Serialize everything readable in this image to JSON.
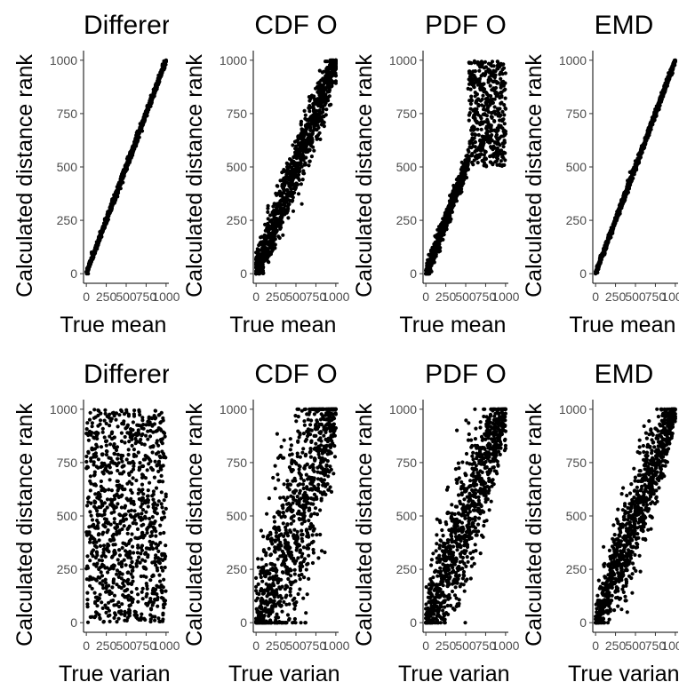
{
  "chart_data": [
    {
      "type": "scatter",
      "title": "Differer",
      "xlabel": "True mean ra",
      "ylabel": "Calculated distance rank",
      "x_ticks": [
        "0",
        "250",
        "500",
        "750",
        "1000"
      ],
      "y_ticks": [
        "0",
        "250",
        "500",
        "750",
        "1000"
      ],
      "xlim": [
        -35,
        1035
      ],
      "ylim": [
        -45,
        1045
      ],
      "pattern": {
        "kind": "band",
        "noise": [
          8,
          8
        ],
        "count": 1000
      }
    },
    {
      "type": "scatter",
      "title": "CDF O",
      "xlabel": "True mean ra",
      "ylabel": "Calculated distance rank",
      "x_ticks": [
        "0",
        "250",
        "500",
        "750",
        "1000"
      ],
      "y_ticks": [
        "0",
        "250",
        "500",
        "750",
        "1000"
      ],
      "xlim": [
        -35,
        1035
      ],
      "ylim": [
        -45,
        1045
      ],
      "pattern": {
        "kind": "band",
        "noise": [
          50,
          50
        ],
        "count": 1000
      }
    },
    {
      "type": "scatter",
      "title": "PDF O",
      "xlabel": "True mean ra",
      "ylabel": "Calculated distance rank",
      "x_ticks": [
        "0",
        "250",
        "500",
        "750",
        "1000"
      ],
      "y_ticks": [
        "0",
        "250",
        "500",
        "750",
        "1000"
      ],
      "xlim": [
        -35,
        1035
      ],
      "ylim": [
        -45,
        1045
      ],
      "pattern": {
        "kind": "split",
        "split_x": 540,
        "low_noise": 25,
        "upper_range": [
          500,
          1000
        ],
        "count": 1000
      }
    },
    {
      "type": "scatter",
      "title": "EMD",
      "xlabel": "True mean ra",
      "ylabel": "Calculated distance rank",
      "x_ticks": [
        "0",
        "250",
        "500",
        "750",
        "1000"
      ],
      "y_ticks": [
        "0",
        "250",
        "500",
        "750",
        "1000"
      ],
      "xlim": [
        -35,
        1035
      ],
      "ylim": [
        -45,
        1045
      ],
      "pattern": {
        "kind": "band",
        "noise": [
          8,
          8
        ],
        "count": 1000
      }
    },
    {
      "type": "scatter",
      "title": "Differer",
      "xlabel": "True variance",
      "ylabel": "Calculated distance rank",
      "x_ticks": [
        "0",
        "250",
        "500",
        "750",
        "1000"
      ],
      "y_ticks": [
        "0",
        "250",
        "500",
        "750",
        "1000"
      ],
      "xlim": [
        -35,
        1035
      ],
      "ylim": [
        -45,
        1045
      ],
      "pattern": {
        "kind": "uniform",
        "count": 1000
      }
    },
    {
      "type": "scatter",
      "title": "CDF O",
      "xlabel": "True variance",
      "ylabel": "Calculated distance rank",
      "x_ticks": [
        "0",
        "250",
        "500",
        "750",
        "1000"
      ],
      "y_ticks": [
        "0",
        "250",
        "500",
        "750",
        "1000"
      ],
      "xlim": [
        -35,
        1035
      ],
      "ylim": [
        -45,
        1045
      ],
      "pattern": {
        "kind": "band",
        "noise": [
          20,
          260
        ],
        "count": 1000
      }
    },
    {
      "type": "scatter",
      "title": "PDF O",
      "xlabel": "True variance",
      "ylabel": "Calculated distance rank",
      "x_ticks": [
        "0",
        "250",
        "500",
        "750",
        "1000"
      ],
      "y_ticks": [
        "0",
        "250",
        "500",
        "750",
        "1000"
      ],
      "xlim": [
        -35,
        1035
      ],
      "ylim": [
        -45,
        1045
      ],
      "pattern": {
        "kind": "band",
        "noise": [
          15,
          160
        ],
        "count": 1000
      }
    },
    {
      "type": "scatter",
      "title": "EMD",
      "xlabel": "True variance",
      "ylabel": "Calculated distance rank",
      "x_ticks": [
        "0",
        "250",
        "500",
        "750",
        "1000"
      ],
      "y_ticks": [
        "0",
        "250",
        "500",
        "750",
        "1000"
      ],
      "xlim": [
        -35,
        1035
      ],
      "ylim": [
        -45,
        1045
      ],
      "pattern": {
        "kind": "band",
        "noise": [
          10,
          120
        ],
        "count": 1000
      }
    }
  ]
}
